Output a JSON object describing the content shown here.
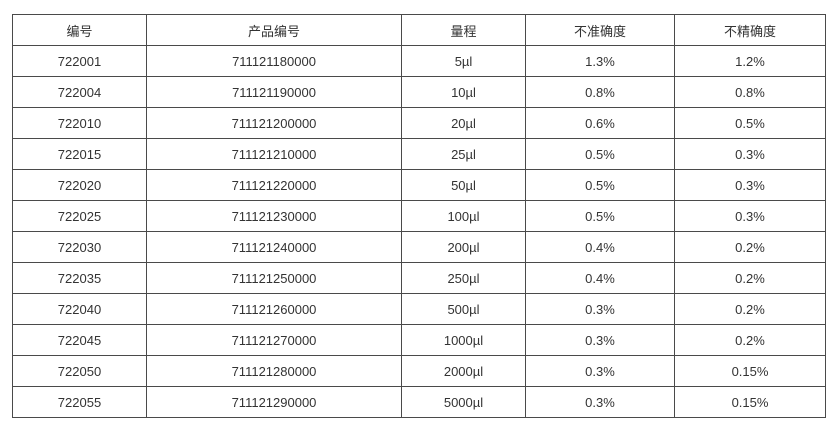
{
  "colors": {
    "background": "#ffffff",
    "text": "#333333",
    "border": "#4a4a4a",
    "highlight": "#ff0000"
  },
  "table": {
    "columns": [
      {
        "key": "id",
        "label": "编号"
      },
      {
        "key": "product",
        "label": "产品编号"
      },
      {
        "key": "range",
        "label": "量程"
      },
      {
        "key": "inaccuracy",
        "label": "不准确度"
      },
      {
        "key": "imprecision",
        "label": "不精确度"
      }
    ],
    "rows": [
      {
        "id": "722001",
        "product": "711121180000",
        "range": "5µl",
        "inaccuracy": "1.3%",
        "imprecision": "1.2%",
        "highlighted": false
      },
      {
        "id": "722004",
        "product": "711121190000",
        "range": "10µl",
        "inaccuracy": "0.8%",
        "imprecision": "0.8%",
        "highlighted": true
      },
      {
        "id": "722010",
        "product": "711121200000",
        "range": "20µl",
        "inaccuracy": "0.6%",
        "imprecision": "0.5%",
        "highlighted": false
      },
      {
        "id": "722015",
        "product": "711121210000",
        "range": "25µl",
        "inaccuracy": "0.5%",
        "imprecision": "0.3%",
        "highlighted": false
      },
      {
        "id": "722020",
        "product": "711121220000",
        "range": "50µl",
        "inaccuracy": "0.5%",
        "imprecision": "0.3%",
        "highlighted": false
      },
      {
        "id": "722025",
        "product": "711121230000",
        "range": "100µl",
        "inaccuracy": "0.5%",
        "imprecision": "0.3%",
        "highlighted": false
      },
      {
        "id": "722030",
        "product": "711121240000",
        "range": "200µl",
        "inaccuracy": "0.4%",
        "imprecision": "0.2%",
        "highlighted": false
      },
      {
        "id": "722035",
        "product": "711121250000",
        "range": "250µl",
        "inaccuracy": "0.4%",
        "imprecision": "0.2%",
        "highlighted": false
      },
      {
        "id": "722040",
        "product": "711121260000",
        "range": "500µl",
        "inaccuracy": "0.3%",
        "imprecision": "0.2%",
        "highlighted": false
      },
      {
        "id": "722045",
        "product": "711121270000",
        "range": "1000µl",
        "inaccuracy": "0.3%",
        "imprecision": "0.2%",
        "highlighted": false
      },
      {
        "id": "722050",
        "product": "711121280000",
        "range": "2000µl",
        "inaccuracy": "0.3%",
        "imprecision": "0.15%",
        "highlighted": false
      },
      {
        "id": "722055",
        "product": "711121290000",
        "range": "5000µl",
        "inaccuracy": "0.3%",
        "imprecision": "0.15%",
        "highlighted": false
      }
    ]
  }
}
